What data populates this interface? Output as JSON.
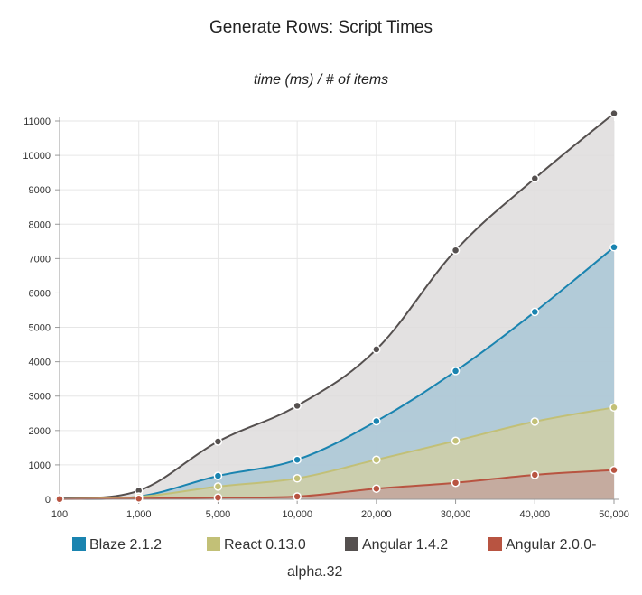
{
  "chart_data": {
    "type": "area",
    "title": "Generate Rows: Script Times",
    "subtitle": "time (ms) / # of items",
    "xlabel": "",
    "ylabel": "",
    "categories": [
      "100",
      "1,000",
      "5,000",
      "10,000",
      "20,000",
      "30,000",
      "40,000",
      "50,000"
    ],
    "ylim": [
      0,
      11000
    ],
    "yticks": [
      0,
      1000,
      2000,
      3000,
      4000,
      5000,
      6000,
      7000,
      8000,
      9000,
      10000,
      11000
    ],
    "grid": true,
    "legend_position": "bottom",
    "series": [
      {
        "name": "Blaze 2.1.2",
        "color": "#1a84b0",
        "fill": "#a9c7d6",
        "values": [
          20,
          80,
          680,
          1150,
          2270,
          3730,
          5450,
          7330
        ]
      },
      {
        "name": "React 0.13.0",
        "color": "#c2c077",
        "fill": "#cfcfa6",
        "values": [
          10,
          70,
          370,
          610,
          1150,
          1700,
          2260,
          2670
        ]
      },
      {
        "name": "Angular 1.4.2",
        "color": "#55504f",
        "fill": "#dedcdc",
        "values": [
          30,
          250,
          1680,
          2720,
          4360,
          7240,
          9330,
          11220
        ]
      },
      {
        "name": "Angular 2.0.0-alpha.32",
        "color": "#b85441",
        "fill": "#c4a59c",
        "values": [
          5,
          20,
          50,
          80,
          310,
          480,
          710,
          850
        ]
      }
    ]
  },
  "legend": {
    "items": [
      {
        "label": "Blaze 2.1.2",
        "color": "#1a84b0"
      },
      {
        "label": "React 0.13.0",
        "color": "#c2c077"
      },
      {
        "label": "Angular 1.4.2",
        "color": "#55504f"
      },
      {
        "label": "Angular 2.0.0-",
        "color": "#b85441"
      }
    ],
    "wrap_label": "alpha.32"
  }
}
